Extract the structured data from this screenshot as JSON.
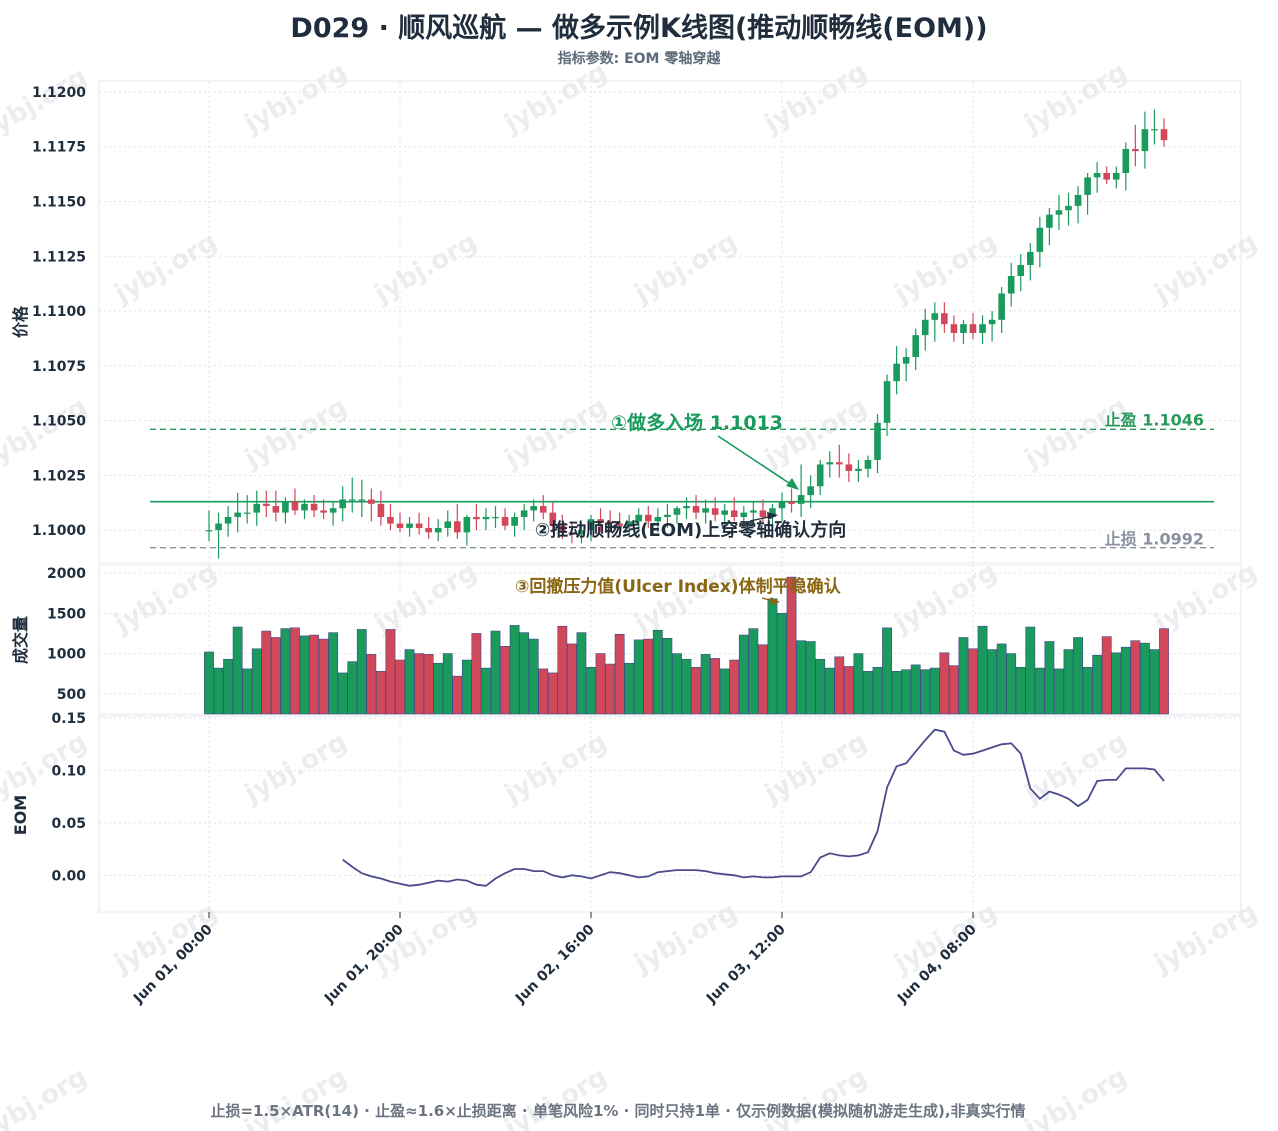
{
  "title": "D029 · 顺风巡航 — 做多示例K线图(推动顺畅线(EOM))",
  "subtitle": "指标参数: EOM 零轴穿越",
  "footer": "止损=1.5×ATR(14) · 止盈≈1.6×止损距离 · 单笔风险1% · 同时只持1单 · 仅示例数据(模拟随机游走生成),非真实行情",
  "watermark": "jybj.org",
  "colors": {
    "up": "#1a9a5c",
    "down": "#d1485a",
    "eom_line": "#4a4a8c",
    "entry": "#1a9a5c",
    "take_profit": "#2a9a5c",
    "stop_loss": "#8a919e",
    "annotation_3": "#8a6512",
    "text_dark": "#1f2d3d"
  },
  "chart_data": {
    "type": "candlestick",
    "x_tick_labels": [
      "Jun 01, 00:00",
      "Jun 01, 20:00",
      "Jun 02, 16:00",
      "Jun 03, 12:00",
      "Jun 04, 08:00"
    ],
    "x_tick_index": [
      0,
      20,
      40,
      60,
      80
    ],
    "price_axis": {
      "label": "价格",
      "ylim": [
        1.0985,
        1.1205
      ],
      "ticks": [
        "1.1000",
        "1.1025",
        "1.1050",
        "1.1075",
        "1.1100",
        "1.1125",
        "1.1150",
        "1.1175",
        "1.1200"
      ]
    },
    "volume_axis": {
      "label": "成交量",
      "ylim": [
        250,
        2100
      ],
      "ticks": [
        "500",
        "1000",
        "1500",
        "2000"
      ]
    },
    "eom_axis": {
      "label": "EOM",
      "ylim": [
        -0.035,
        0.152
      ],
      "ticks": [
        "0.00",
        "0.05",
        "0.10",
        "0.15"
      ]
    },
    "ohlc": [
      [
        1.1,
        1.1009,
        1.0995,
        1.1
      ],
      [
        1.1,
        1.1008,
        1.0987,
        1.1003
      ],
      [
        1.1003,
        1.1011,
        1.0997,
        1.1006
      ],
      [
        1.1006,
        1.1017,
        1.0999,
        1.1008
      ],
      [
        1.1008,
        1.1016,
        1.1003,
        1.1008
      ],
      [
        1.1008,
        1.1018,
        1.1002,
        1.1012
      ],
      [
        1.1012,
        1.1018,
        1.1006,
        1.1011
      ],
      [
        1.1011,
        1.1018,
        1.1004,
        1.1008
      ],
      [
        1.1008,
        1.1015,
        1.1003,
        1.1013
      ],
      [
        1.1013,
        1.1019,
        1.1007,
        1.1009
      ],
      [
        1.1009,
        1.1014,
        1.1005,
        1.1012
      ],
      [
        1.1012,
        1.1016,
        1.1006,
        1.1009
      ],
      [
        1.1009,
        1.1014,
        1.1005,
        1.1008
      ],
      [
        1.1008,
        1.1013,
        1.1002,
        1.101
      ],
      [
        1.101,
        1.102,
        1.1004,
        1.1014
      ],
      [
        1.1014,
        1.1024,
        1.1008,
        1.1014
      ],
      [
        1.1014,
        1.1023,
        1.1006,
        1.1014
      ],
      [
        1.1014,
        1.1019,
        1.1004,
        1.1012
      ],
      [
        1.1012,
        1.1018,
        1.1002,
        1.1006
      ],
      [
        1.1006,
        1.1012,
        1.1,
        1.1003
      ],
      [
        1.1003,
        1.1008,
        1.0999,
        1.1001
      ],
      [
        1.1001,
        1.1006,
        1.0997,
        1.1003
      ],
      [
        1.1003,
        1.1008,
        1.0998,
        1.1001
      ],
      [
        1.1001,
        1.1006,
        1.0996,
        1.0999
      ],
      [
        1.0999,
        1.1005,
        1.0995,
        1.1001
      ],
      [
        1.1001,
        1.1009,
        1.0997,
        1.1004
      ],
      [
        1.1004,
        1.1012,
        1.0996,
        1.0999
      ],
      [
        1.0999,
        1.1007,
        1.0993,
        1.1006
      ],
      [
        1.1006,
        1.1012,
        1.1,
        1.1005
      ],
      [
        1.1005,
        1.101,
        1.1,
        1.1006
      ],
      [
        1.1006,
        1.1011,
        1.1001,
        1.1006
      ],
      [
        1.1006,
        1.101,
        1.1,
        1.1002
      ],
      [
        1.1002,
        1.1008,
        1.0997,
        1.1006
      ],
      [
        1.1006,
        1.1012,
        1.1,
        1.1009
      ],
      [
        1.1009,
        1.1014,
        1.1004,
        1.1011
      ],
      [
        1.1011,
        1.1016,
        1.1005,
        1.1008
      ],
      [
        1.1008,
        1.1013,
        1.0999,
        1.1002
      ],
      [
        1.1002,
        1.1007,
        1.0996,
        1.0999
      ],
      [
        1.0999,
        1.1004,
        1.0994,
        1.0998
      ],
      [
        1.0998,
        1.1003,
        1.0994,
        1.1
      ],
      [
        1.1,
        1.1007,
        1.0995,
        1.1005
      ],
      [
        1.1005,
        1.101,
        1.0999,
        1.1004
      ],
      [
        1.1004,
        1.1009,
        1.0999,
        1.1003
      ],
      [
        1.1003,
        1.1008,
        1.0998,
        1.1002
      ],
      [
        1.1002,
        1.1007,
        1.0997,
        1.1004
      ],
      [
        1.1004,
        1.101,
        1.0999,
        1.1007
      ],
      [
        1.1007,
        1.1011,
        1.1001,
        1.1004
      ],
      [
        1.1004,
        1.101,
        1.0999,
        1.1006
      ],
      [
        1.1006,
        1.1012,
        1.1001,
        1.1007
      ],
      [
        1.1007,
        1.1011,
        1.1003,
        1.101
      ],
      [
        1.101,
        1.1015,
        1.1005,
        1.1011
      ],
      [
        1.1011,
        1.1016,
        1.1005,
        1.1008
      ],
      [
        1.1008,
        1.1014,
        1.1003,
        1.101
      ],
      [
        1.101,
        1.1015,
        1.1004,
        1.1007
      ],
      [
        1.1007,
        1.1012,
        1.1002,
        1.1009
      ],
      [
        1.1009,
        1.1015,
        1.1004,
        1.1006
      ],
      [
        1.1006,
        1.1011,
        1.1001,
        1.1008
      ],
      [
        1.1008,
        1.1013,
        1.1003,
        1.1009
      ],
      [
        1.1009,
        1.1014,
        1.1003,
        1.1006
      ],
      [
        1.1006,
        1.1012,
        1.1002,
        1.101
      ],
      [
        1.101,
        1.1017,
        1.1004,
        1.1013
      ],
      [
        1.1013,
        1.1019,
        1.1008,
        1.1012
      ],
      [
        1.1012,
        1.103,
        1.1006,
        1.1016
      ],
      [
        1.1016,
        1.1025,
        1.101,
        1.102
      ],
      [
        1.102,
        1.1032,
        1.1016,
        1.103
      ],
      [
        1.103,
        1.1036,
        1.1024,
        1.1031
      ],
      [
        1.1031,
        1.1039,
        1.1024,
        1.103
      ],
      [
        1.103,
        1.1035,
        1.1022,
        1.1027
      ],
      [
        1.1027,
        1.1032,
        1.1022,
        1.1028
      ],
      [
        1.1028,
        1.1034,
        1.1024,
        1.1032
      ],
      [
        1.1032,
        1.1053,
        1.1026,
        1.1049
      ],
      [
        1.1049,
        1.1071,
        1.1043,
        1.1068
      ],
      [
        1.1068,
        1.1084,
        1.1062,
        1.1076
      ],
      [
        1.1076,
        1.1083,
        1.1068,
        1.1079
      ],
      [
        1.1079,
        1.1092,
        1.1073,
        1.1089
      ],
      [
        1.1089,
        1.1101,
        1.1082,
        1.1096
      ],
      [
        1.1096,
        1.1104,
        1.1086,
        1.1099
      ],
      [
        1.1099,
        1.1104,
        1.109,
        1.1094
      ],
      [
        1.1094,
        1.1098,
        1.1086,
        1.109
      ],
      [
        1.109,
        1.1096,
        1.1085,
        1.1094
      ],
      [
        1.1094,
        1.1099,
        1.1087,
        1.109
      ],
      [
        1.109,
        1.1098,
        1.1085,
        1.1094
      ],
      [
        1.1094,
        1.11,
        1.1086,
        1.1096
      ],
      [
        1.1096,
        1.1111,
        1.109,
        1.1108
      ],
      [
        1.1108,
        1.1122,
        1.1102,
        1.1116
      ],
      [
        1.1116,
        1.1126,
        1.1109,
        1.1121
      ],
      [
        1.1121,
        1.1131,
        1.1114,
        1.1127
      ],
      [
        1.1127,
        1.1143,
        1.112,
        1.1138
      ],
      [
        1.1138,
        1.1147,
        1.113,
        1.1144
      ],
      [
        1.1144,
        1.1153,
        1.1137,
        1.1146
      ],
      [
        1.1146,
        1.1154,
        1.1139,
        1.1148
      ],
      [
        1.1148,
        1.1157,
        1.114,
        1.1153
      ],
      [
        1.1153,
        1.1163,
        1.1144,
        1.1161
      ],
      [
        1.1161,
        1.1168,
        1.1154,
        1.1163
      ],
      [
        1.1163,
        1.1166,
        1.1158,
        1.116
      ],
      [
        1.116,
        1.1166,
        1.1156,
        1.1163
      ],
      [
        1.1163,
        1.1177,
        1.1155,
        1.1174
      ],
      [
        1.1174,
        1.1185,
        1.1166,
        1.1173
      ],
      [
        1.1173,
        1.1191,
        1.1165,
        1.1183
      ],
      [
        1.1183,
        1.1192,
        1.1176,
        1.1183
      ],
      [
        1.1183,
        1.1188,
        1.1175,
        1.1178
      ]
    ],
    "volume": [
      1020,
      820,
      930,
      1330,
      810,
      1060,
      1280,
      1200,
      1310,
      1320,
      1220,
      1230,
      1180,
      1260,
      760,
      900,
      1300,
      990,
      780,
      1300,
      920,
      1050,
      1000,
      990,
      880,
      1000,
      720,
      920,
      1250,
      820,
      1280,
      1090,
      1350,
      1260,
      1180,
      810,
      760,
      1340,
      1120,
      1260,
      830,
      1000,
      870,
      1240,
      880,
      1170,
      1180,
      1290,
      1190,
      1000,
      930,
      830,
      990,
      940,
      810,
      920,
      1230,
      1310,
      1110,
      1680,
      1500,
      1950,
      1160,
      1150,
      930,
      820,
      960,
      840,
      1000,
      780,
      830,
      1320,
      780,
      800,
      860,
      800,
      820,
      1010,
      850,
      1200,
      1060,
      1340,
      1050,
      1120,
      1000,
      830,
      1330,
      820,
      1150,
      810,
      1050,
      1200,
      830,
      980,
      1210,
      1010,
      1080,
      1160,
      1130,
      1050,
      1310
    ],
    "eom_start_index": 14,
    "eom": [
      0.015,
      0.008,
      0.002,
      -0.001,
      -0.003,
      -0.006,
      -0.008,
      -0.01,
      -0.009,
      -0.007,
      -0.005,
      -0.006,
      -0.004,
      -0.005,
      -0.009,
      -0.01,
      -0.003,
      0.002,
      0.006,
      0.006,
      0.004,
      0.004,
      0.0,
      -0.002,
      0.0,
      -0.001,
      -0.003,
      0.0,
      0.003,
      0.002,
      0.0,
      -0.002,
      -0.001,
      0.003,
      0.004,
      0.005,
      0.005,
      0.005,
      0.004,
      0.002,
      0.001,
      0.0,
      -0.002,
      -0.001,
      -0.002,
      -0.002,
      -0.001,
      -0.001,
      -0.001,
      0.003,
      0.017,
      0.021,
      0.019,
      0.018,
      0.019,
      0.022,
      0.042,
      0.084,
      0.104,
      0.107,
      0.118,
      0.129,
      0.139,
      0.137,
      0.119,
      0.115,
      0.116,
      0.119,
      0.122,
      0.125,
      0.126,
      0.116,
      0.083,
      0.073,
      0.08,
      0.077,
      0.073,
      0.066,
      0.072,
      0.09,
      0.091,
      0.091,
      0.102,
      0.102,
      0.102,
      0.101,
      0.09
    ],
    "levels": {
      "entry": 1.1013,
      "take_profit": 1.1046,
      "stop_loss": 1.0992
    },
    "level_labels": {
      "take_profit": "止盈 1.1046",
      "stop_loss": "止损 1.0992"
    },
    "annotations": {
      "entry": "①做多入场 1.1013",
      "eom_cross": "②推动顺畅线(EOM)上穿零轴确认方向",
      "ulcer": "③回撤压力值(Ulcer Index)体制平稳确认"
    },
    "grid": true
  }
}
